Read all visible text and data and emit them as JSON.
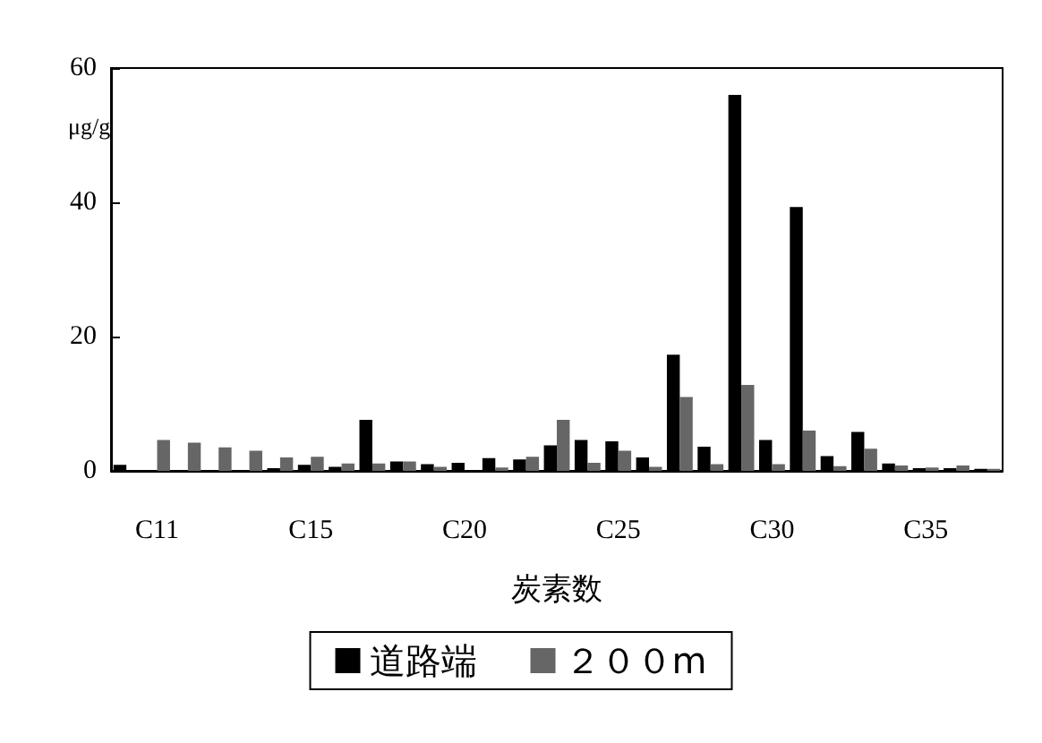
{
  "chart_data": {
    "type": "bar",
    "ylabel": "μg/g",
    "xlabel": "炭素数",
    "categories": [
      null,
      "C11",
      null,
      null,
      null,
      null,
      "C15",
      null,
      null,
      null,
      null,
      "C20",
      null,
      null,
      null,
      null,
      "C25",
      null,
      null,
      null,
      null,
      "C30",
      null,
      null,
      null,
      null,
      "C35",
      null,
      null
    ],
    "series": [
      {
        "name": "道路端",
        "color": "#000000",
        "values": [
          0.9,
          0,
          0,
          0,
          0,
          0.4,
          0.9,
          0.6,
          7.6,
          1.4,
          1.0,
          1.2,
          1.9,
          1.7,
          3.8,
          4.6,
          4.4,
          2.0,
          17.3,
          3.6,
          56,
          4.6,
          39.3,
          2.2,
          5.8,
          1.1,
          0.4,
          0.4,
          0.3
        ]
      },
      {
        "name": "２００m",
        "color": "#666666",
        "values": [
          0,
          4.6,
          4.2,
          3.5,
          3.0,
          2.0,
          2.1,
          1.1,
          1.1,
          1.4,
          0.6,
          0,
          0.5,
          2.1,
          7.6,
          1.2,
          3.0,
          0.6,
          11.0,
          1.0,
          12.8,
          1.0,
          6.0,
          0.7,
          3.3,
          0.8,
          0.5,
          0.8,
          0.3
        ]
      }
    ],
    "ylim": [
      0,
      60
    ],
    "yticks": [
      0,
      20,
      40,
      60
    ],
    "grid": false,
    "legend": "bottom"
  }
}
